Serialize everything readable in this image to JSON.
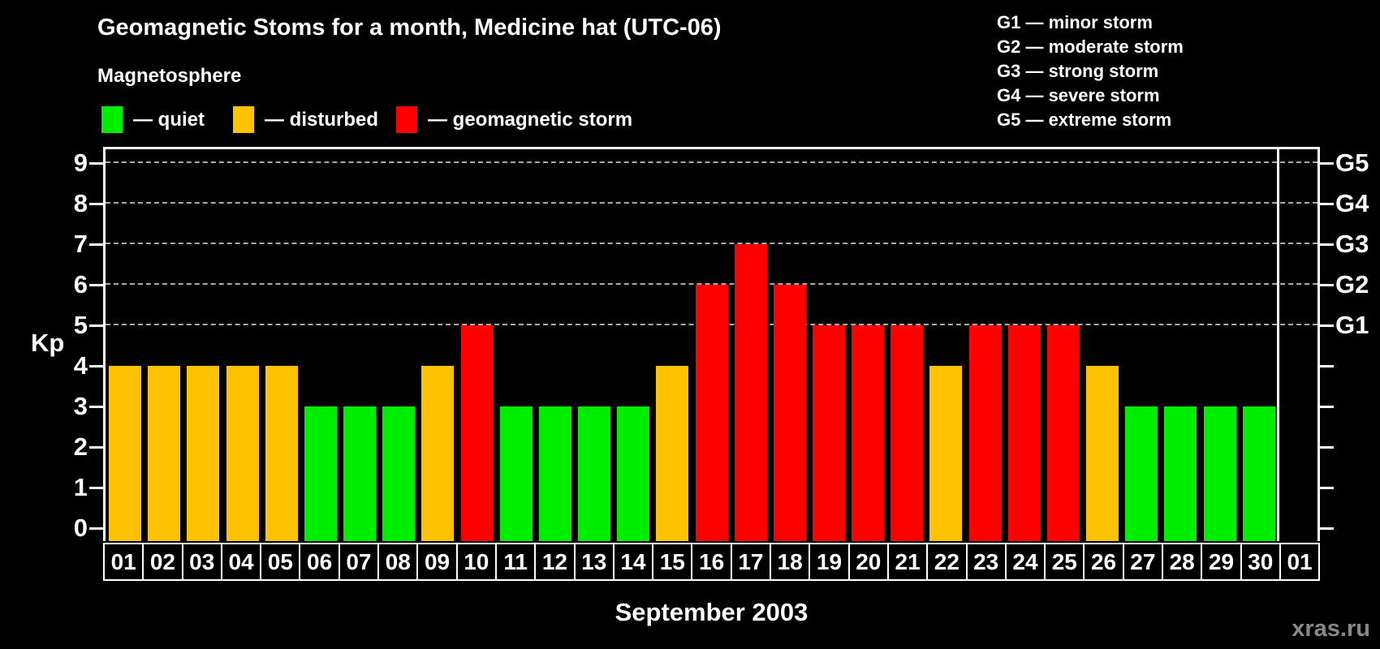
{
  "header": {
    "title": "Geomagnetic Stoms for a month, Medicine hat (UTC-06)",
    "subtitle": "Magnetosphere"
  },
  "legend": {
    "items": [
      {
        "state": "quiet",
        "label": "— quiet",
        "color": "#00ee00"
      },
      {
        "state": "disturbed",
        "label": "— disturbed",
        "color": "#ffc200"
      },
      {
        "state": "storm",
        "label": "— geomagnetic storm",
        "color": "#ff0000"
      }
    ]
  },
  "g_legend": {
    "items": [
      "G1 — minor storm",
      "G2 — moderate storm",
      "G3 — strong storm",
      "G4 — severe storm",
      "G5 — extreme storm"
    ]
  },
  "axes": {
    "y_label": "Kp",
    "y_ticks": [
      0,
      1,
      2,
      3,
      4,
      5,
      6,
      7,
      8,
      9
    ],
    "right_labels": [
      {
        "kp": 5,
        "label": "G1"
      },
      {
        "kp": 6,
        "label": "G2"
      },
      {
        "kp": 7,
        "label": "G3"
      },
      {
        "kp": 8,
        "label": "G4"
      },
      {
        "kp": 9,
        "label": "G5"
      }
    ],
    "x_title": "September 2003"
  },
  "watermark": "xras.ru",
  "chart_data": {
    "type": "bar",
    "title": "Geomagnetic Stoms for a month, Medicine hat (UTC-06)",
    "xlabel": "September 2003",
    "ylabel": "Kp",
    "ylim": [
      0,
      9.4
    ],
    "grid_on": true,
    "grid_levels": [
      5,
      6,
      7,
      8,
      9
    ],
    "categories": [
      "01",
      "02",
      "03",
      "04",
      "05",
      "06",
      "07",
      "08",
      "09",
      "10",
      "11",
      "12",
      "13",
      "14",
      "15",
      "16",
      "17",
      "18",
      "19",
      "20",
      "21",
      "22",
      "23",
      "24",
      "25",
      "26",
      "27",
      "28",
      "29",
      "30",
      "01"
    ],
    "series": [
      {
        "name": "Kp index",
        "values": [
          4,
          4,
          4,
          4,
          4,
          3,
          3,
          3,
          4,
          5,
          3,
          3,
          3,
          3,
          4,
          6,
          7,
          6,
          5,
          5,
          5,
          4,
          5,
          5,
          5,
          4,
          3,
          3,
          3,
          3,
          null
        ]
      }
    ],
    "states": [
      "disturbed",
      "disturbed",
      "disturbed",
      "disturbed",
      "disturbed",
      "quiet",
      "quiet",
      "quiet",
      "disturbed",
      "storm",
      "quiet",
      "quiet",
      "quiet",
      "quiet",
      "disturbed",
      "storm",
      "storm",
      "storm",
      "storm",
      "storm",
      "storm",
      "disturbed",
      "storm",
      "storm",
      "storm",
      "disturbed",
      "quiet",
      "quiet",
      "quiet",
      "quiet",
      null
    ],
    "state_colors": {
      "quiet": "#00ee00",
      "disturbed": "#ffc200",
      "storm": "#ff0000"
    },
    "legend_position": "top"
  }
}
